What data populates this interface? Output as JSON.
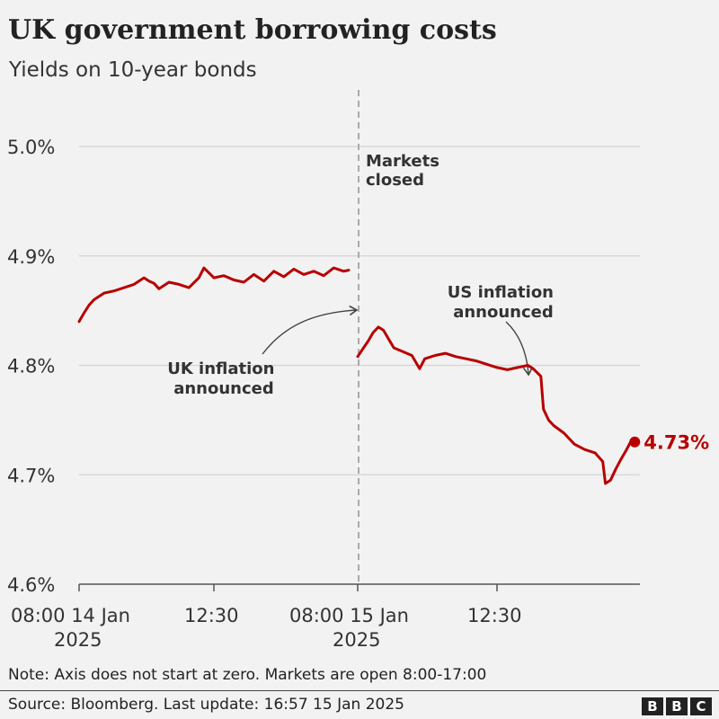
{
  "header": {
    "title": "UK government borrowing costs",
    "subtitle": "Yields on 10-year bonds"
  },
  "chart_data": {
    "type": "line",
    "title": "UK government borrowing costs",
    "subtitle": "Yields on 10-year bonds",
    "ylim": [
      4.6,
      5.0
    ],
    "y_ticks": [
      5.0,
      4.9,
      4.8,
      4.7,
      4.6
    ],
    "y_tick_labels": [
      "5.0%",
      "4.9%",
      "4.8%",
      "4.7%",
      "4.6%"
    ],
    "x_ticks": [
      {
        "day": 1,
        "time": "08:00",
        "line1": "08:00 14 Jan",
        "line2": "2025"
      },
      {
        "day": 1,
        "time": "12:30",
        "line1": "12:30",
        "line2": ""
      },
      {
        "day": 2,
        "time": "08:00",
        "line1": "08:00 15 Jan",
        "line2": "2025"
      },
      {
        "day": 2,
        "time": "12:30",
        "line1": "12:30",
        "line2": ""
      }
    ],
    "grid": true,
    "colors": {
      "line": "#b80000",
      "grid": "#d4d4d4",
      "divider": "#aaaaaa",
      "annotation": "#444444"
    },
    "series": [
      {
        "segments": [
          {
            "day": "14 Jan 2025",
            "points": [
              [
                "08:00",
                4.84
              ],
              [
                "08:10",
                4.848
              ],
              [
                "08:20",
                4.855
              ],
              [
                "08:30",
                4.86
              ],
              [
                "08:50",
                4.866
              ],
              [
                "09:10",
                4.868
              ],
              [
                "09:30",
                4.871
              ],
              [
                "09:50",
                4.874
              ],
              [
                "10:10",
                4.88
              ],
              [
                "10:20",
                4.877
              ],
              [
                "10:30",
                4.875
              ],
              [
                "10:40",
                4.87
              ],
              [
                "11:00",
                4.876
              ],
              [
                "11:20",
                4.874
              ],
              [
                "11:40",
                4.871
              ],
              [
                "12:00",
                4.88
              ],
              [
                "12:10",
                4.889
              ],
              [
                "12:30",
                4.88
              ],
              [
                "12:50",
                4.882
              ],
              [
                "13:10",
                4.878
              ],
              [
                "13:30",
                4.876
              ],
              [
                "13:50",
                4.883
              ],
              [
                "14:10",
                4.877
              ],
              [
                "14:30",
                4.886
              ],
              [
                "14:50",
                4.881
              ],
              [
                "15:10",
                4.888
              ],
              [
                "15:30",
                4.883
              ],
              [
                "15:50",
                4.886
              ],
              [
                "16:10",
                4.882
              ],
              [
                "16:30",
                4.889
              ],
              [
                "16:50",
                4.886
              ],
              [
                "17:00",
                4.887
              ]
            ]
          },
          {
            "day": "15 Jan 2025",
            "points": [
              [
                "08:00",
                4.808
              ],
              [
                "08:10",
                4.815
              ],
              [
                "08:20",
                4.822
              ],
              [
                "08:30",
                4.83
              ],
              [
                "08:40",
                4.835
              ],
              [
                "08:50",
                4.832
              ],
              [
                "09:00",
                4.824
              ],
              [
                "09:10",
                4.816
              ],
              [
                "09:30",
                4.812
              ],
              [
                "09:45",
                4.809
              ],
              [
                "10:00",
                4.797
              ],
              [
                "10:10",
                4.806
              ],
              [
                "10:30",
                4.809
              ],
              [
                "10:50",
                4.811
              ],
              [
                "11:10",
                4.808
              ],
              [
                "11:30",
                4.806
              ],
              [
                "11:50",
                4.804
              ],
              [
                "12:10",
                4.801
              ],
              [
                "12:30",
                4.798
              ],
              [
                "12:50",
                4.796
              ],
              [
                "13:10",
                4.798
              ],
              [
                "13:30",
                4.8
              ],
              [
                "13:40",
                4.797
              ],
              [
                "13:55",
                4.79
              ],
              [
                "14:00",
                4.76
              ],
              [
                "14:10",
                4.75
              ],
              [
                "14:20",
                4.745
              ],
              [
                "14:40",
                4.738
              ],
              [
                "15:00",
                4.728
              ],
              [
                "15:20",
                4.723
              ],
              [
                "15:40",
                4.72
              ],
              [
                "15:55",
                4.712
              ],
              [
                "16:00",
                4.692
              ],
              [
                "16:10",
                4.695
              ],
              [
                "16:20",
                4.705
              ],
              [
                "16:30",
                4.714
              ],
              [
                "16:40",
                4.722
              ],
              [
                "16:50",
                4.731
              ],
              [
                "16:57",
                4.73
              ]
            ]
          }
        ],
        "end_label": "4.73%",
        "end_value": 4.73
      }
    ],
    "annotations": {
      "markets_closed": [
        "Markets",
        "closed"
      ],
      "uk_inflation": [
        "UK inflation",
        "announced"
      ],
      "us_inflation": [
        "US inflation",
        "announced"
      ]
    }
  },
  "footer": {
    "note": "Note: Axis does not start at zero. Markets are open 8:00-17:00",
    "source": "Source: Bloomberg. Last update: 16:57 15 Jan 2025",
    "logo_letters": [
      "B",
      "B",
      "C"
    ]
  }
}
